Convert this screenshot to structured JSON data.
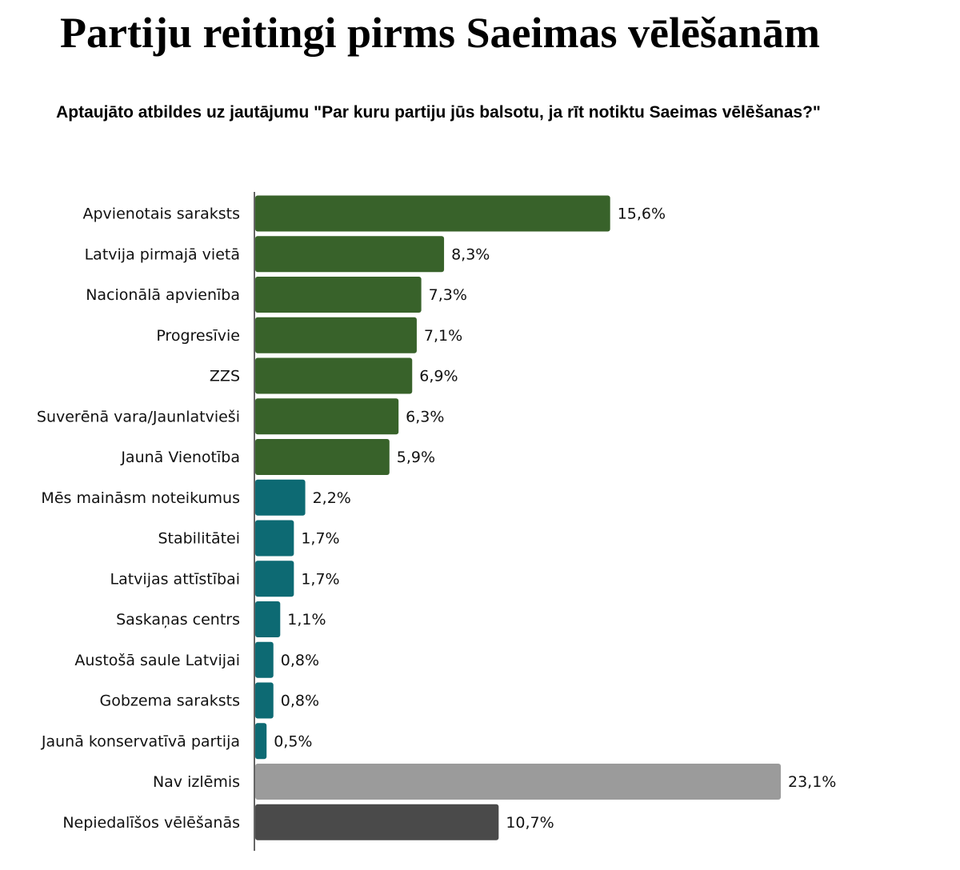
{
  "chart_data": {
    "type": "bar",
    "orientation": "horizontal",
    "title": "Partiju reitingi pirms Saeimas vēlēšanām",
    "subtitle": "Aptaujāto atbildes uz jautājumu \"Par kuru partiju jūs balsotu, ja rīt notiktu  Saeimas vēlēšanas?\"",
    "categories": [
      "Apvienotais saraksts",
      "Latvija pirmajā vietā",
      "Nacionālā apvienība",
      "Progresīvie",
      "ZZS",
      "Suverēnā vara/Jaunlatvieši",
      "Jaunā Vienotība",
      "Mēs maināsm noteikumus",
      "Stabilitātei",
      "Latvijas attīstībai",
      "Saskaņas centrs",
      "Austošā saule Latvijai",
      "Gobzema saraksts",
      "Jaunā konservatīvā partija",
      "Nav izlēmis",
      "Nepiedalīšos vēlēšanās"
    ],
    "values": [
      15.6,
      8.3,
      7.3,
      7.1,
      6.9,
      6.3,
      5.9,
      2.2,
      1.7,
      1.7,
      1.1,
      0.8,
      0.8,
      0.5,
      23.1,
      10.7
    ],
    "value_labels": [
      "15,6%",
      "8,3%",
      "7,3%",
      "7,1%",
      "6,9%",
      "6,3%",
      "5,9%",
      "2,2%",
      "1,7%",
      "1,7%",
      "1,1%",
      "0,8%",
      "0,8%",
      "0,5%",
      "23,1%",
      "10,7%"
    ],
    "colors": [
      "#38622a",
      "#38622a",
      "#38622a",
      "#38622a",
      "#38622a",
      "#38622a",
      "#38622a",
      "#0d6a73",
      "#0d6a73",
      "#0d6a73",
      "#0d6a73",
      "#0d6a73",
      "#0d6a73",
      "#0d6a73",
      "#9b9b9b",
      "#4a4a4a"
    ]
  }
}
